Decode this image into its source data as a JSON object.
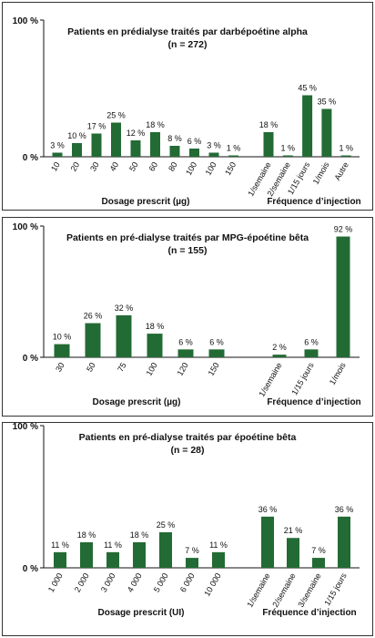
{
  "chart_data": [
    {
      "type": "bar",
      "title": "Patients en prédialyse traités par darbépoétine alpha",
      "subtitle": "(n = 272)",
      "color": "#236b35",
      "ylim": [
        0,
        100
      ],
      "yticks": [
        {
          "value": 0,
          "label": "0 %"
        },
        {
          "value": 100,
          "label": "100 %"
        }
      ],
      "groups": [
        {
          "xlabel": "Dosage prescrit (µg)",
          "categories": [
            "10",
            "20",
            "30",
            "40",
            "50",
            "60",
            "80",
            "100",
            "100",
            "150"
          ],
          "values": [
            3,
            10,
            17,
            25,
            12,
            18,
            8,
            6,
            3,
            1
          ],
          "value_labels": [
            "3 %",
            "10 %",
            "17 %",
            "25 %",
            "12 %",
            "18 %",
            "8 %",
            "6 %",
            "3 %",
            "1 %"
          ]
        },
        {
          "xlabel": "Fréquence d’injection",
          "categories": [
            "1/semaine",
            "2/semaine",
            "1/15 jours",
            "1/mois",
            "Autre"
          ],
          "values": [
            18,
            1,
            45,
            35,
            1
          ],
          "value_labels": [
            "18 %",
            "1 %",
            "45 %",
            "35 %",
            "1 %"
          ]
        }
      ]
    },
    {
      "type": "bar",
      "title": "Patients en pré-dialyse traités par MPG-époétine bêta",
      "subtitle": "(n = 155)",
      "color": "#236b35",
      "ylim": [
        0,
        100
      ],
      "yticks": [
        {
          "value": 0,
          "label": "0 %"
        },
        {
          "value": 100,
          "label": "100 %"
        }
      ],
      "groups": [
        {
          "xlabel": "Dosage prescrit (µg)",
          "categories": [
            "30",
            "50",
            "75",
            "100",
            "120",
            "150"
          ],
          "values": [
            10,
            26,
            32,
            18,
            6,
            6
          ],
          "value_labels": [
            "10 %",
            "26 %",
            "32 %",
            "18 %",
            "6 %",
            "6 %"
          ]
        },
        {
          "xlabel": "Fréquence d’injection",
          "categories": [
            "1/semaine",
            "1/15 jours",
            "1/mois"
          ],
          "values": [
            2,
            6,
            92
          ],
          "value_labels": [
            "2 %",
            "6 %",
            "92 %"
          ]
        }
      ]
    },
    {
      "type": "bar",
      "title": "Patients en pré-dialyse traités par époétine bêta",
      "subtitle": "(n = 28)",
      "color": "#236b35",
      "ylim": [
        0,
        100
      ],
      "yticks": [
        {
          "value": 0,
          "label": "0 %"
        },
        {
          "value": 100,
          "label": "100 %"
        }
      ],
      "groups": [
        {
          "xlabel": "Dosage prescrit (UI)",
          "categories": [
            "1 000",
            "2 000",
            "3 000",
            "4 000",
            "5 000",
            "6 000",
            "10 000"
          ],
          "values": [
            11,
            18,
            11,
            18,
            25,
            7,
            11
          ],
          "value_labels": [
            "11 %",
            "18 %",
            "11 %",
            "18 %",
            "25 %",
            "7 %",
            "11 %"
          ]
        },
        {
          "xlabel": "Fréquence d’injection",
          "categories": [
            "1/semaine",
            "2/semaine",
            "3/semaine",
            "1/15 jours"
          ],
          "values": [
            36,
            21,
            7,
            36
          ],
          "value_labels": [
            "36 %",
            "21 %",
            "7 %",
            "36 %"
          ]
        }
      ]
    }
  ]
}
